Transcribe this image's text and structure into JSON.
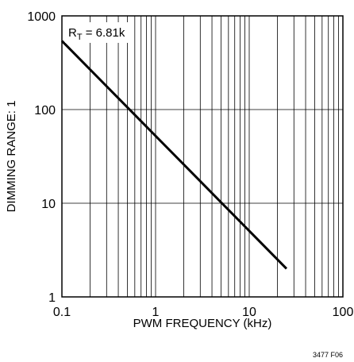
{
  "chart_data": {
    "type": "line",
    "title": "",
    "xlabel": "PWM FREQUENCY (kHz)",
    "ylabel": "DIMMING RANGE: 1",
    "xscale": "log",
    "yscale": "log",
    "xlim": [
      0.1,
      100
    ],
    "ylim": [
      1,
      1000
    ],
    "x_ticks": [
      "0.1",
      "1",
      "10",
      "100"
    ],
    "y_ticks": [
      "1",
      "10",
      "100",
      "1000"
    ],
    "grid": "log grid on, vertical minor lines and horizontal decade lines",
    "series": [
      {
        "x": [
          0.1,
          25
        ],
        "y": [
          540,
          2
        ],
        "color": "#000000"
      }
    ],
    "annotation": {
      "main": "R",
      "sub": "T",
      "rest": " = 6.81k"
    },
    "figure_id": "3477 F06"
  }
}
